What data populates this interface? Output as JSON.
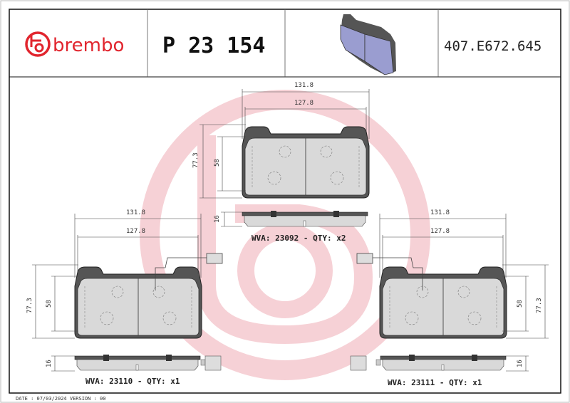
{
  "header": {
    "brand": "brembo",
    "part_number": "P 23 154",
    "reference_code": "407.E672.645"
  },
  "colors": {
    "brand_red": "#e1252e",
    "watermark_pink": "#f6cdd2",
    "pad_fill": "#d9d9d9",
    "backing_plate": "#555555",
    "preview_pad": "#9a9dd0"
  },
  "top_pad": {
    "width_outer": "131.8",
    "width_inner": "127.8",
    "height_outer": "77.3",
    "height_inner": "58",
    "thickness": "16",
    "label": "WVA: 23092 - QTY: x2"
  },
  "bottom_left_pad": {
    "width_outer": "131.8",
    "width_inner": "127.8",
    "height_outer": "77.3",
    "height_inner": "58",
    "thickness": "16",
    "label": "WVA: 23110 - QTY: x1"
  },
  "bottom_right_pad": {
    "width_outer": "131.8",
    "width_inner": "127.8",
    "height_outer": "77.3",
    "height_inner": "58",
    "thickness": "16",
    "label": "WVA: 23111 - QTY: x1"
  },
  "footer": {
    "date_version": "DATE : 07/03/2024 VERSION : 00"
  }
}
